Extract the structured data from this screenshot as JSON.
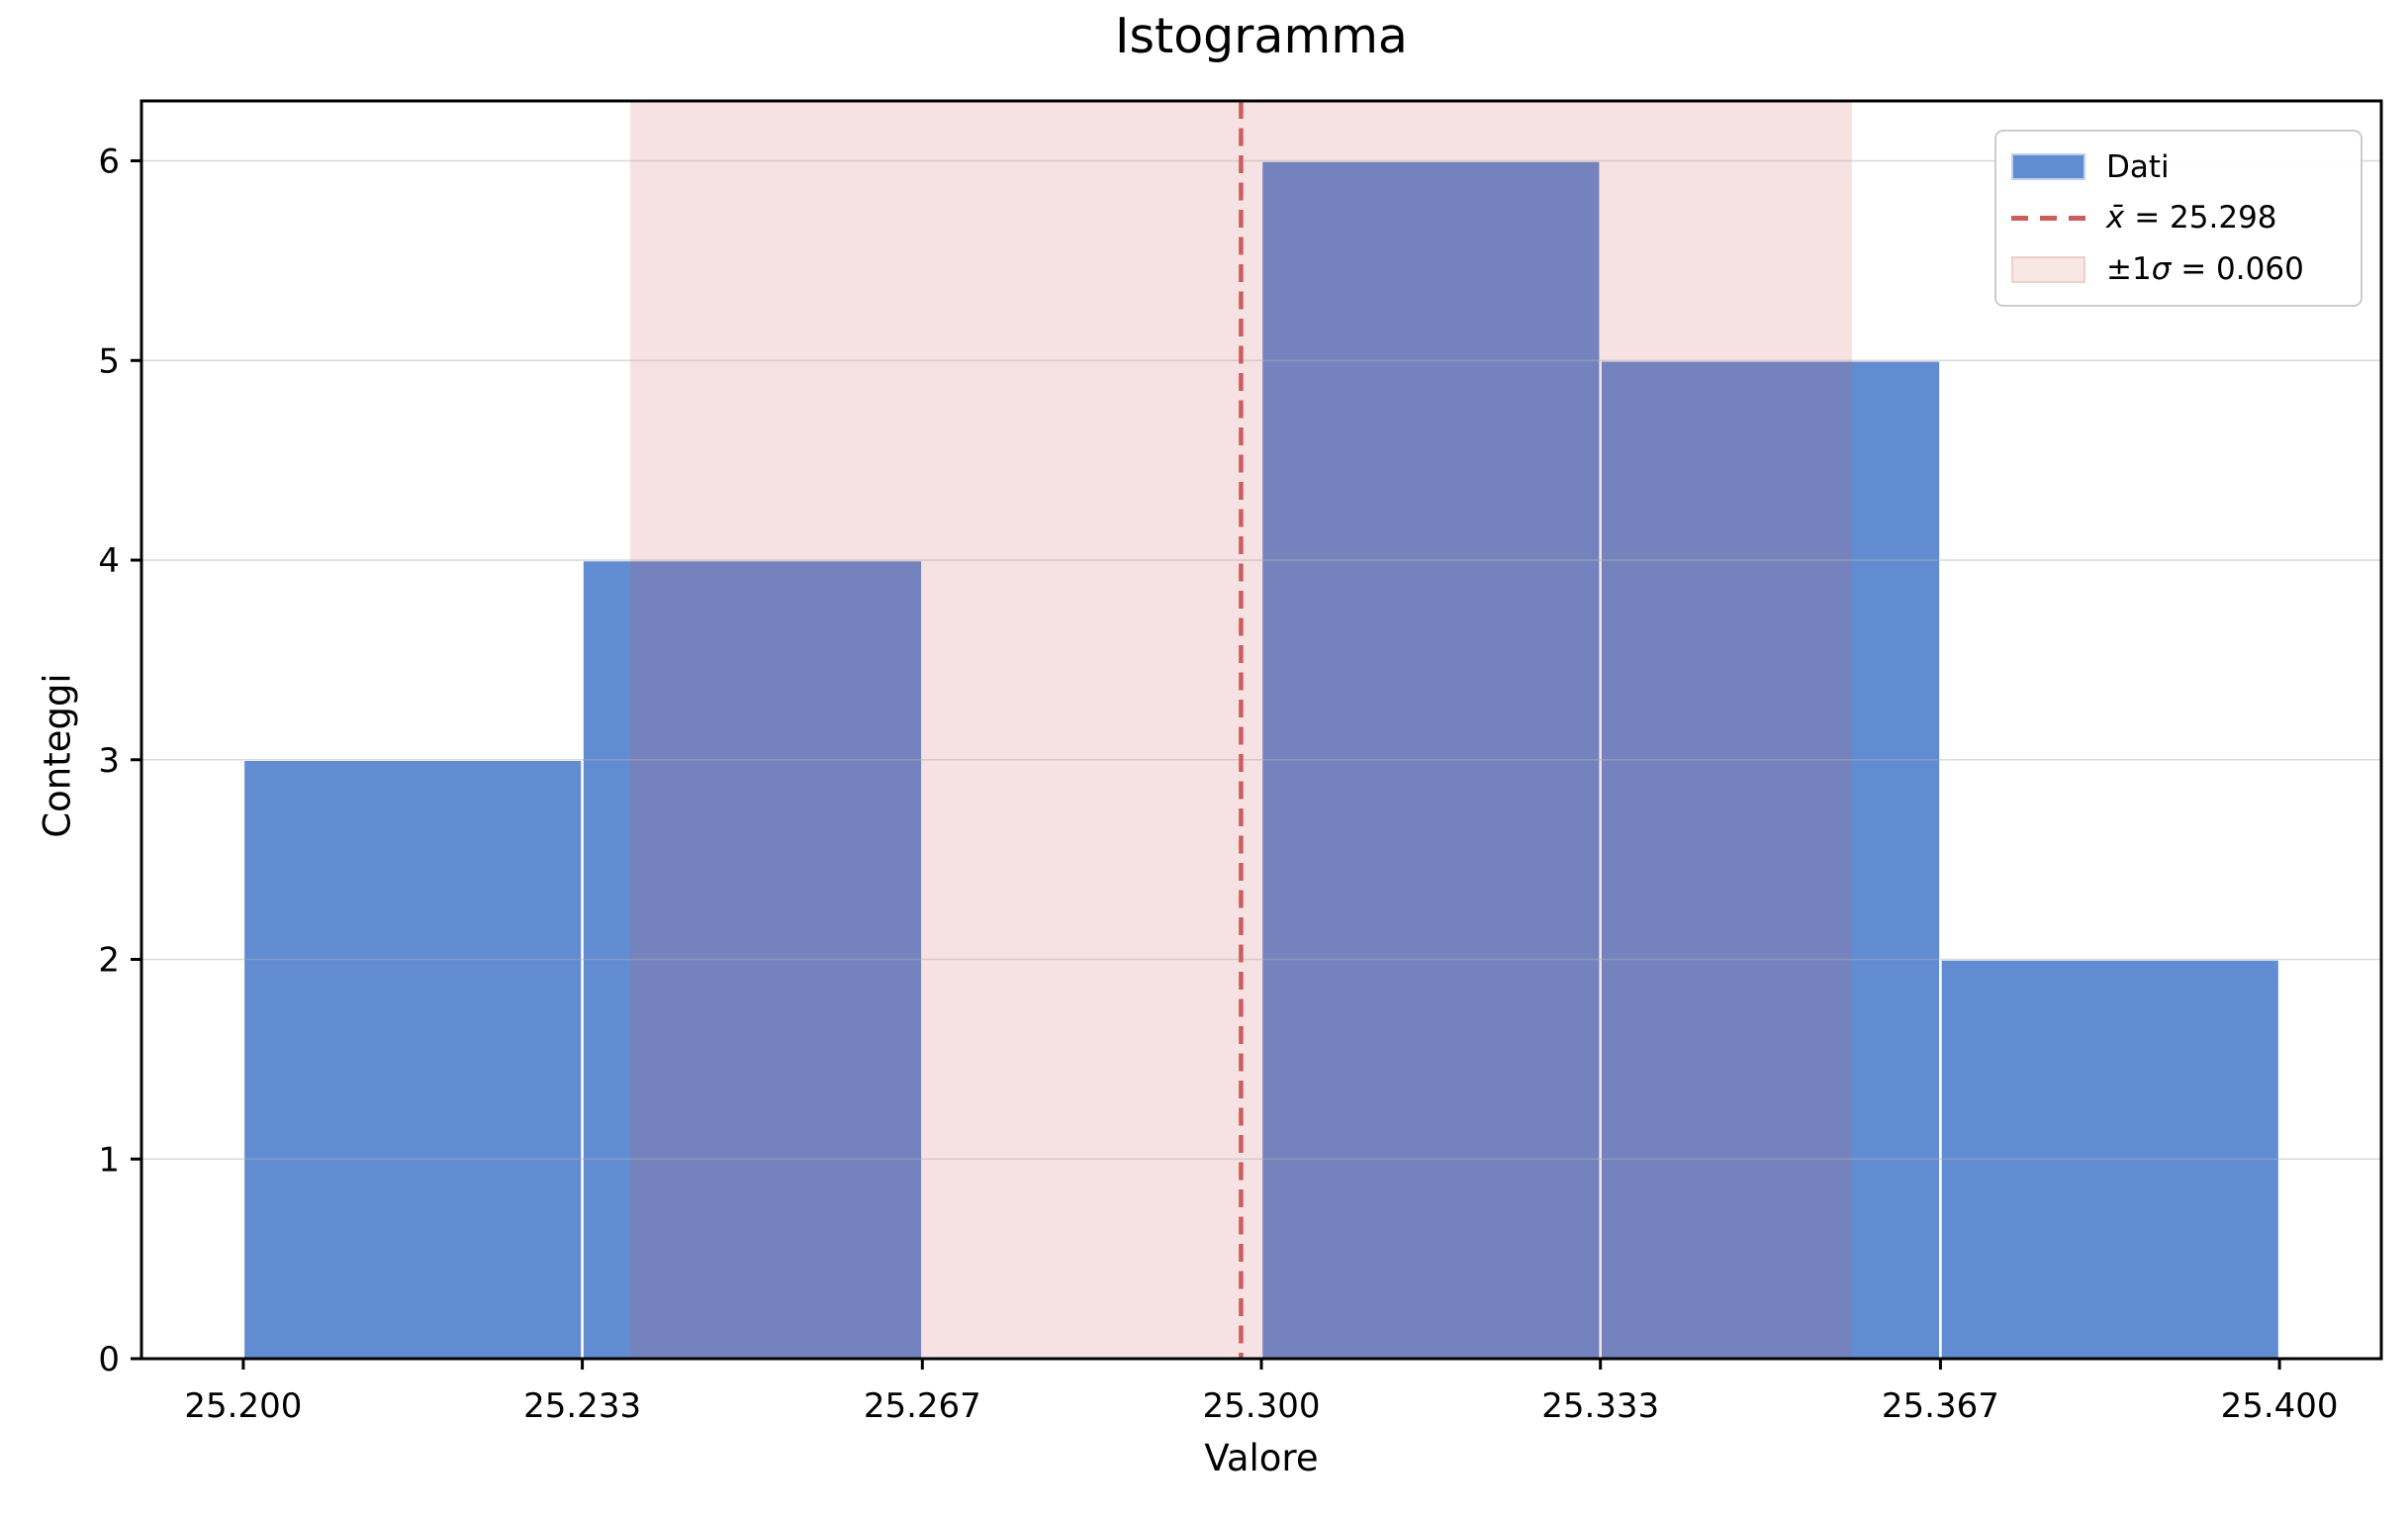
{
  "chart_data": {
    "type": "bar",
    "subtype": "histogram",
    "title": "Istogramma",
    "xlabel": "Valore",
    "ylabel": "Conteggi",
    "bin_edges": [
      25.2,
      25.2333,
      25.2667,
      25.3,
      25.3333,
      25.3667,
      25.4
    ],
    "counts": [
      3,
      4,
      0,
      6,
      5,
      2
    ],
    "mean": 25.298,
    "sigma": 0.06,
    "sigma_band": [
      25.238,
      25.358
    ],
    "xlim": [
      25.19,
      25.41
    ],
    "ylim": [
      0,
      6.3
    ],
    "xticks": {
      "values": [
        25.2,
        25.2333,
        25.2667,
        25.3,
        25.3333,
        25.3667,
        25.4
      ],
      "labels": [
        "25.200",
        "25.233",
        "25.267",
        "25.300",
        "25.333",
        "25.367",
        "25.400"
      ]
    },
    "yticks": {
      "values": [
        0,
        1,
        2,
        3,
        4,
        5,
        6
      ],
      "labels": [
        "0",
        "1",
        "2",
        "3",
        "4",
        "5",
        "6"
      ]
    },
    "grid": "horizontal-only",
    "legend_position": "upper-right",
    "colors": {
      "bar": "#618CD2",
      "bar_edge": "#FFFFFF",
      "band": "#CD5C5C",
      "band_alpha": 0.18,
      "mean_line": "#CD5C5C",
      "grid": "#B0B0B0",
      "axes": "#000000",
      "text": "#000000",
      "legend_border": "#CCCCCC"
    }
  },
  "legend": {
    "items": [
      {
        "id": "dati",
        "swatch": "bar",
        "segments": [
          {
            "text": "Dati",
            "italic": false
          }
        ]
      },
      {
        "id": "mean",
        "swatch": "dash",
        "segments": [
          {
            "text": "x̄",
            "italic": true
          },
          {
            "text": " = 25.298",
            "italic": false
          }
        ]
      },
      {
        "id": "sigma",
        "swatch": "band",
        "segments": [
          {
            "text": "±1",
            "italic": false
          },
          {
            "text": "σ",
            "italic": true
          },
          {
            "text": " = 0.060",
            "italic": false
          }
        ]
      }
    ]
  }
}
